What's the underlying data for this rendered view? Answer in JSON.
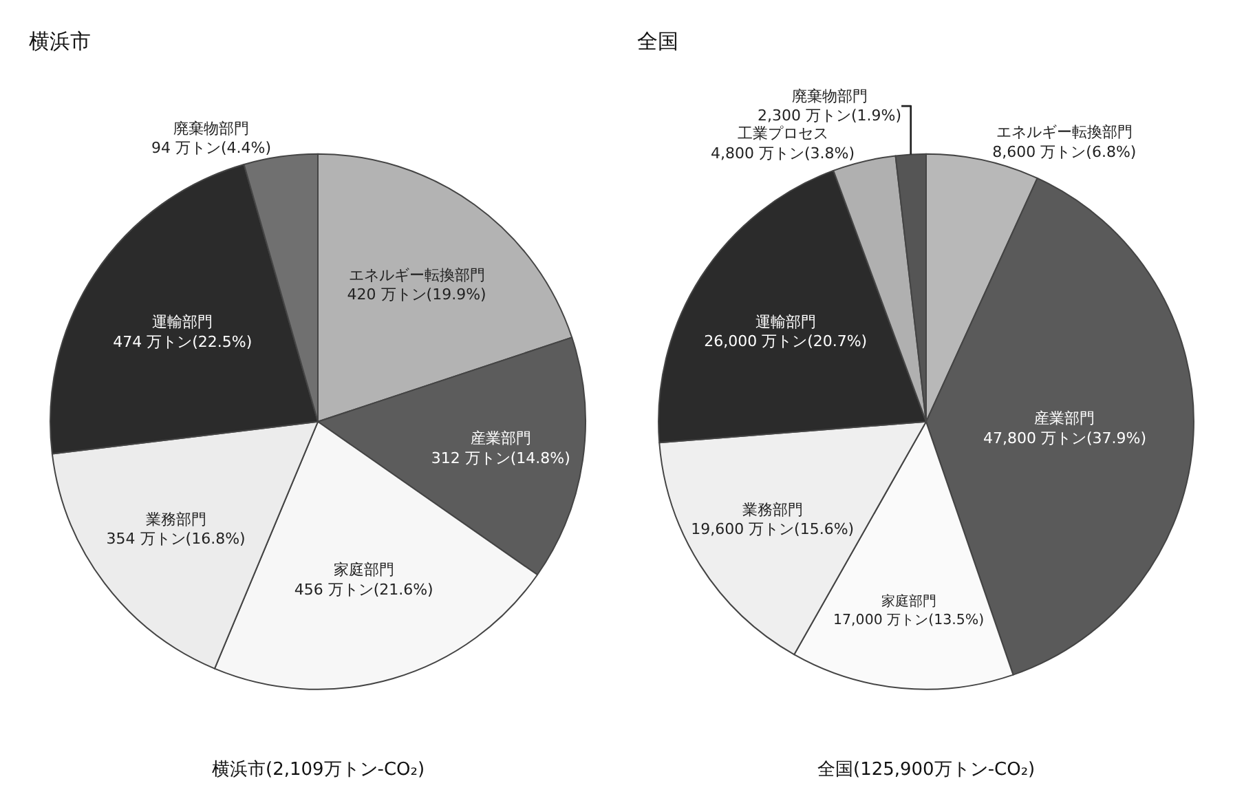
{
  "chart_data": [
    {
      "type": "pie",
      "title": "横浜市",
      "categories": [
        "エネルギー転換部門",
        "産業部門",
        "家庭部門",
        "業務部門",
        "運輸部門",
        "廃棄物部門"
      ],
      "values": [
        420,
        312,
        456,
        354,
        474,
        94
      ],
      "colors": [
        "#b3b3b3",
        "#5c5c5c",
        "#f7f7f7",
        "#ececec",
        "#2b2b2b",
        "#707070"
      ],
      "value_labels": [
        "420 万トン(19.9%)",
        "312 万トン(14.8%)",
        "456 万トン(21.6%)",
        "354 万トン(16.8%)",
        "474 万トン(22.5%)",
        "94 万トン(4.4%)"
      ],
      "annotations": [
        "横浜市(2,109万トン-CO₂)"
      ],
      "legend": false
    },
    {
      "type": "pie",
      "title": "全国",
      "categories": [
        "エネルギー転換部門",
        "産業部門",
        "家庭部門",
        "業務部門",
        "運輸部門",
        "工業プロセス",
        "廃棄物部門"
      ],
      "values": [
        8600,
        47800,
        17000,
        19600,
        26000,
        4800,
        2300
      ],
      "colors": [
        "#b8b8b8",
        "#5a5a5a",
        "#fafafa",
        "#efefef",
        "#2b2b2b",
        "#b0b0b0",
        "#555555"
      ],
      "value_labels": [
        "8,600 万トン(6.8%)",
        "47,800 万トン(37.9%)",
        "17,000 万トン(13.5%)",
        "19,600 万トン(15.6%)",
        "26,000 万トン(20.7%)",
        "4,800 万トン(3.8%)",
        "2,300 万トン(1.9%)"
      ],
      "annotations": [
        "全国(125,900万トン-CO₂)"
      ],
      "legend": false
    }
  ]
}
